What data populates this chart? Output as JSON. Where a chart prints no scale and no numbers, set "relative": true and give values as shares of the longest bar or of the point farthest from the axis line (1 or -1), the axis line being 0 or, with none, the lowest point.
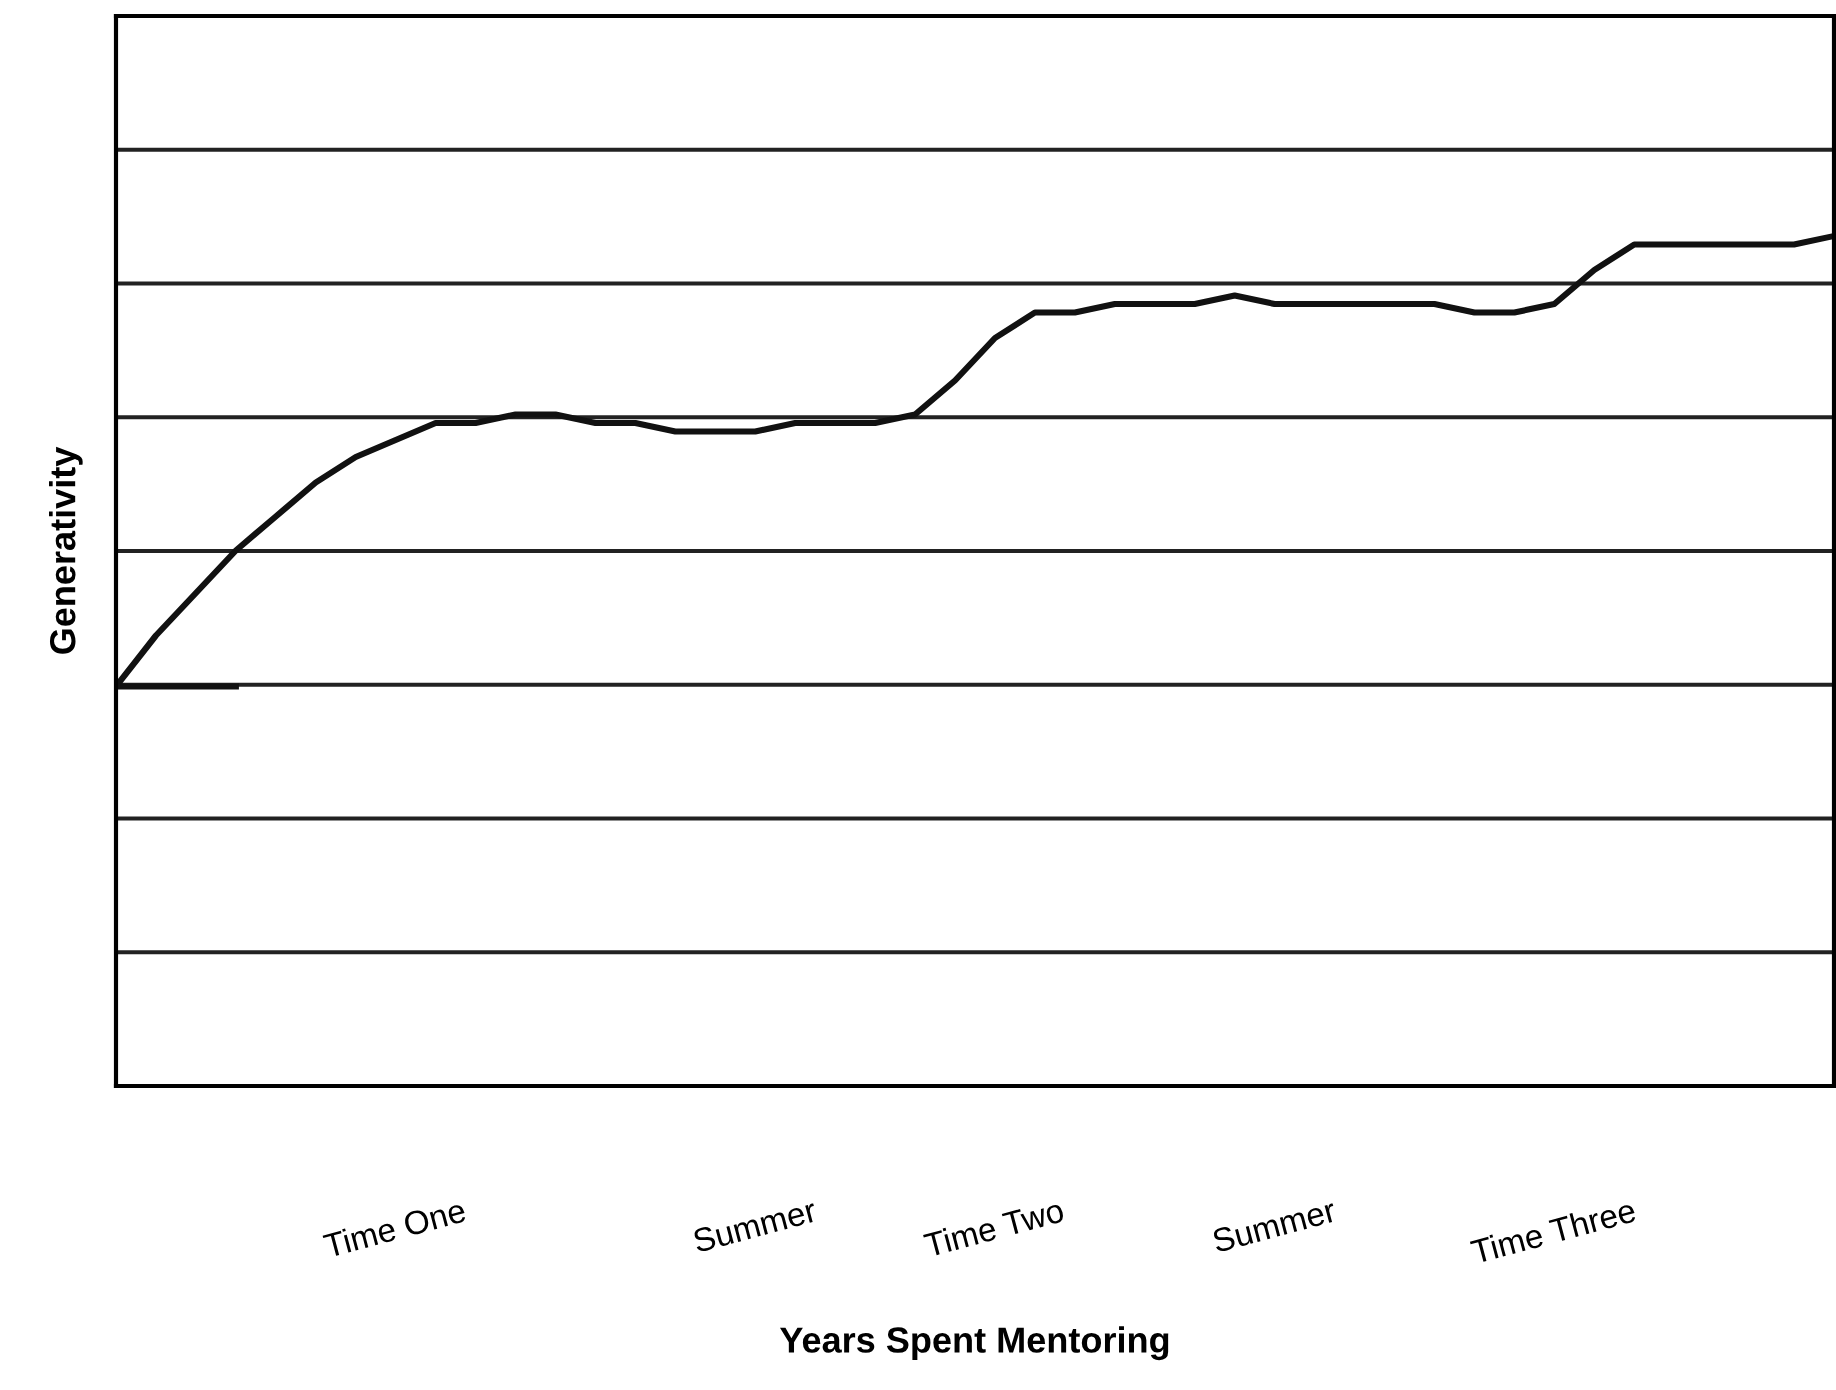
{
  "chart_data": {
    "type": "line",
    "relative": true,
    "xlabel": "Years Spent Mentoring",
    "ylabel": "Generativity",
    "grid": "y",
    "marker": "none",
    "line_style": "solid",
    "categories": [
      null,
      null,
      null,
      null,
      null,
      null,
      null,
      "Time One",
      null,
      null,
      null,
      null,
      null,
      null,
      null,
      null,
      "Summer",
      null,
      null,
      null,
      null,
      null,
      "Time Two",
      null,
      null,
      null,
      null,
      null,
      null,
      "Summer",
      null,
      null,
      null,
      null,
      null,
      null,
      "Time Three",
      null,
      null,
      null,
      null,
      null,
      null,
      null
    ],
    "series": [
      {
        "color": "#111111",
        "values": [
          0.47,
          0.53,
          0.58,
          0.63,
          0.67,
          0.71,
          0.74,
          0.76,
          0.78,
          0.78,
          0.79,
          0.79,
          0.78,
          0.78,
          0.77,
          0.77,
          0.77,
          0.78,
          0.78,
          0.78,
          0.79,
          0.83,
          0.88,
          0.91,
          0.91,
          0.92,
          0.92,
          0.92,
          0.93,
          0.92,
          0.92,
          0.92,
          0.92,
          0.92,
          0.91,
          0.91,
          0.92,
          0.96,
          0.99,
          0.99,
          0.99,
          0.99,
          0.99,
          1.0
        ]
      },
      {
        "color": "#111111",
        "values": [
          0.47,
          0.47,
          0.47,
          0.47,
          null,
          null,
          null,
          null,
          null,
          null,
          null,
          null,
          null,
          null,
          null,
          null,
          null,
          null,
          null,
          null,
          null,
          null,
          null,
          null,
          null,
          null,
          null,
          null,
          null,
          null,
          null,
          null,
          null,
          null,
          null,
          null,
          null,
          null,
          null,
          null,
          null,
          null,
          null,
          null
        ]
      }
    ]
  }
}
